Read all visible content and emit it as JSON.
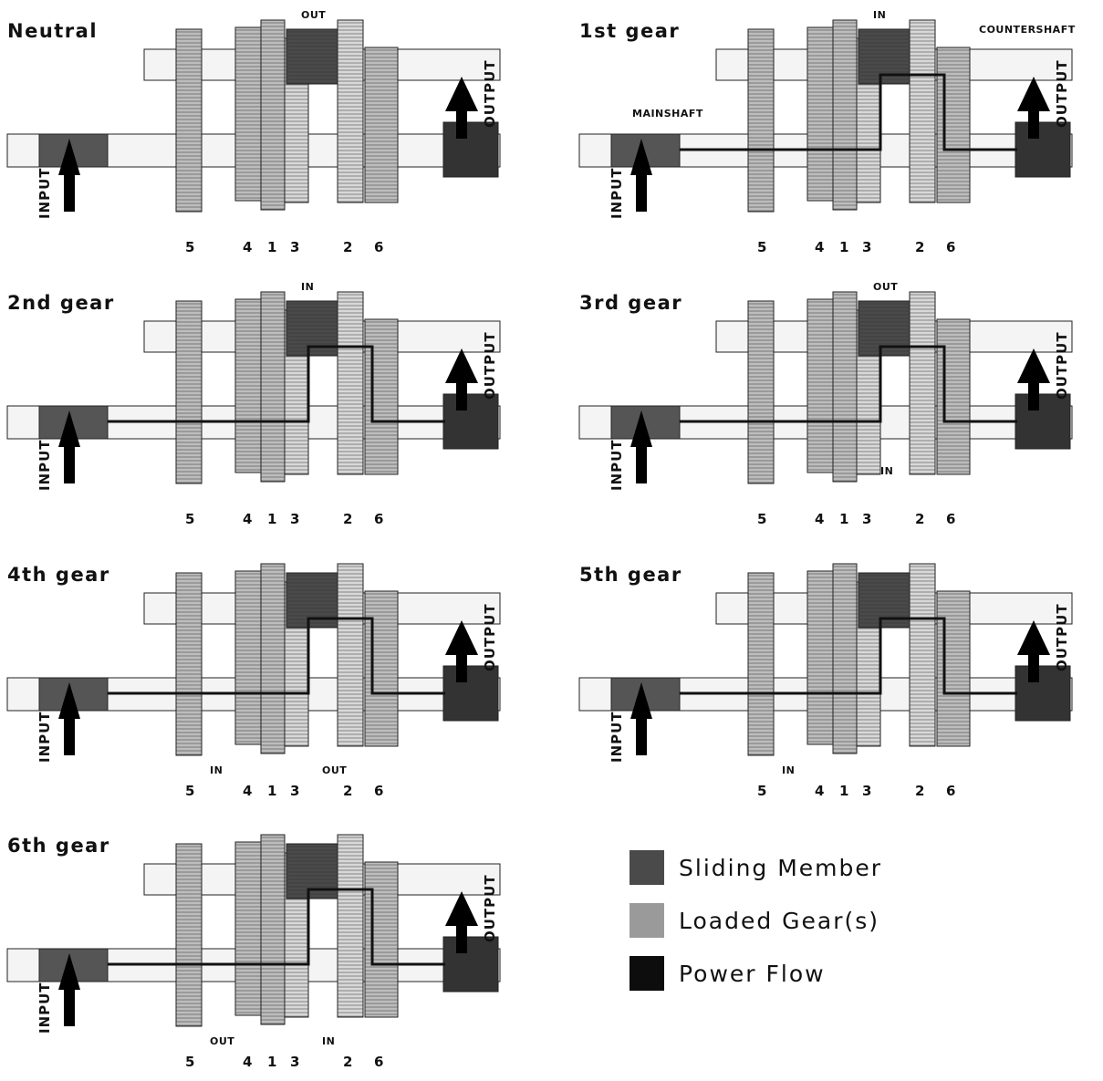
{
  "panels": [
    {
      "title": "Neutral",
      "tags": {
        "top": "OUT"
      }
    },
    {
      "title": "1st gear",
      "tags": {
        "top": "IN",
        "countershaft": "COUNTERSHAFT",
        "mainshaft": "MAINSHAFT"
      }
    },
    {
      "title": "2nd gear",
      "tags": {
        "top": "IN"
      }
    },
    {
      "title": "3rd gear",
      "tags": {
        "top": "OUT",
        "bottom": "IN"
      }
    },
    {
      "title": "4th gear",
      "tags": {
        "bottom_left": "IN",
        "bottom_right": "OUT"
      }
    },
    {
      "title": "5th gear",
      "tags": {
        "bottom_left": "IN"
      }
    },
    {
      "title": "6th gear",
      "tags": {
        "bottom_left": "OUT",
        "bottom_right": "IN"
      }
    }
  ],
  "gear_numbers": [
    "5",
    "4",
    "1",
    "3",
    "2",
    "6"
  ],
  "input_label": "INPUT",
  "output_label": "OUTPUT",
  "legend": [
    {
      "label": "Sliding Member",
      "color": "#4a4a4a"
    },
    {
      "label": "Loaded Gear(s)",
      "color": "#9a9a9a"
    },
    {
      "label": "Power Flow",
      "color": "#0d0d0d"
    }
  ]
}
